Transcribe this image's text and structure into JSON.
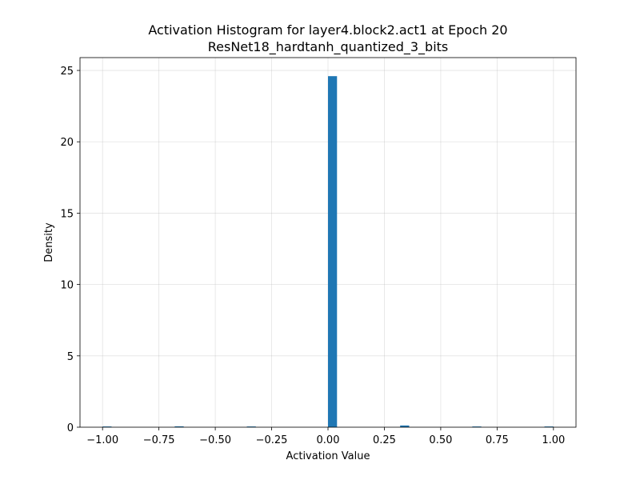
{
  "chart_data": {
    "type": "bar",
    "title": "Activation Histogram for layer4.block2.act1 at Epoch 20",
    "subtitle": "ResNet18_hardtanh_quantized_3_bits",
    "xlabel": "Activation Value",
    "ylabel": "Density",
    "xlim": [
      -1.1,
      1.1
    ],
    "ylim": [
      0,
      25.9
    ],
    "xticks": [
      -1.0,
      -0.75,
      -0.5,
      -0.25,
      0.0,
      0.25,
      0.5,
      0.75,
      1.0
    ],
    "xtick_labels": [
      "−1.00",
      "−0.75",
      "−0.50",
      "−0.25",
      "0.00",
      "0.25",
      "0.50",
      "0.75",
      "1.00"
    ],
    "yticks": [
      0,
      5,
      10,
      15,
      20,
      25
    ],
    "ytick_labels": [
      "0",
      "5",
      "10",
      "15",
      "20",
      "25"
    ],
    "grid": true,
    "bar_color": "#1f77b4",
    "bins": [
      {
        "left": -1.0,
        "right": -0.96,
        "value": 0.05
      },
      {
        "left": -0.68,
        "right": -0.64,
        "value": 0.06
      },
      {
        "left": -0.36,
        "right": -0.32,
        "value": 0.05
      },
      {
        "left": 0.0,
        "right": 0.04,
        "value": 24.6
      },
      {
        "left": 0.32,
        "right": 0.36,
        "value": 0.12
      },
      {
        "left": 0.64,
        "right": 0.68,
        "value": 0.05
      },
      {
        "left": 0.96,
        "right": 1.0,
        "value": 0.05
      }
    ]
  }
}
